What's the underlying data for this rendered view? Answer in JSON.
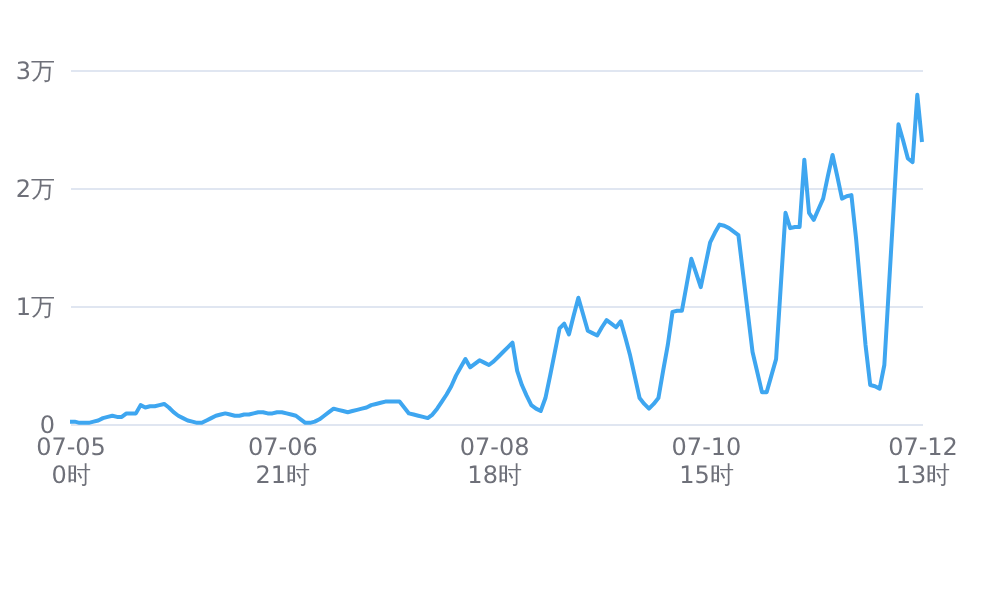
{
  "chart_data": {
    "type": "line",
    "categories": [
      "07-05\n0时",
      null,
      null,
      null,
      null,
      null,
      null,
      null,
      null,
      null,
      null,
      null,
      null,
      null,
      null,
      null,
      null,
      null,
      null,
      null,
      null,
      null,
      null,
      null,
      null,
      null,
      null,
      null,
      null,
      null,
      null,
      null,
      null,
      null,
      null,
      null,
      null,
      null,
      null,
      null,
      null,
      null,
      null,
      null,
      null,
      "07-06\n21时",
      null,
      null,
      null,
      null,
      null,
      null,
      null,
      null,
      null,
      null,
      null,
      null,
      null,
      null,
      null,
      null,
      null,
      null,
      null,
      null,
      null,
      null,
      null,
      null,
      null,
      null,
      null,
      null,
      null,
      null,
      null,
      null,
      null,
      null,
      null,
      null,
      null,
      null,
      null,
      null,
      null,
      null,
      null,
      null,
      "07-08\n18时",
      null,
      null,
      null,
      null,
      null,
      null,
      null,
      null,
      null,
      null,
      null,
      null,
      null,
      null,
      null,
      null,
      null,
      null,
      null,
      null,
      null,
      null,
      null,
      null,
      null,
      null,
      null,
      null,
      null,
      null,
      null,
      null,
      null,
      null,
      null,
      null,
      null,
      null,
      null,
      null,
      null,
      null,
      null,
      null,
      "07-10\n15时",
      null,
      null,
      null,
      null,
      null,
      null,
      null,
      null,
      null,
      null,
      null,
      null,
      null,
      null,
      null,
      null,
      null,
      null,
      null,
      null,
      null,
      null,
      null,
      null,
      null,
      null,
      null,
      null,
      null,
      null,
      null,
      null,
      null,
      null,
      null,
      null,
      null,
      null,
      null,
      null,
      null,
      null,
      null,
      null,
      null,
      "07-12\n13时"
    ],
    "series": [
      {
        "color": "#3ea6f0",
        "values": [
          0.02,
          0.02,
          0.01,
          0.01,
          0.01,
          0.02,
          0.03,
          0.05,
          0.06,
          0.07,
          0.06,
          0.06,
          0.09,
          0.09,
          0.09,
          0.16,
          0.14,
          0.15,
          0.15,
          0.16,
          0.17,
          0.14,
          0.1,
          0.07,
          0.05,
          0.03,
          0.02,
          0.01,
          0.01,
          0.03,
          0.05,
          0.07,
          0.08,
          0.09,
          0.08,
          0.07,
          0.07,
          0.08,
          0.08,
          0.09,
          0.1,
          0.1,
          0.09,
          0.09,
          0.1,
          0.1,
          0.09,
          0.08,
          0.07,
          0.04,
          0.01,
          0.01,
          0.02,
          0.04,
          0.07,
          0.1,
          0.13,
          0.12,
          0.11,
          0.1,
          0.11,
          0.12,
          0.13,
          0.14,
          0.16,
          0.17,
          0.18,
          0.19,
          0.19,
          0.19,
          0.19,
          0.14,
          0.09,
          0.08,
          0.07,
          0.06,
          0.05,
          0.08,
          0.13,
          0.19,
          0.25,
          0.32,
          0.41,
          0.48,
          0.55,
          0.48,
          0.51,
          0.54,
          0.52,
          0.5,
          0.53,
          0.57,
          0.61,
          0.65,
          0.69,
          0.45,
          0.33,
          0.24,
          0.16,
          0.13,
          0.11,
          0.22,
          0.41,
          0.61,
          0.81,
          0.85,
          0.76,
          0.92,
          1.07,
          0.93,
          0.79,
          0.77,
          0.75,
          0.82,
          0.88,
          0.85,
          0.82,
          0.87,
          0.73,
          0.58,
          0.4,
          0.22,
          0.17,
          0.13,
          0.17,
          0.22,
          0.45,
          0.67,
          0.95,
          0.96,
          0.96,
          1.18,
          1.4,
          1.28,
          1.16,
          1.35,
          1.54,
          1.62,
          1.69,
          1.68,
          1.66,
          1.63,
          1.6,
          1.27,
          0.94,
          0.61,
          0.44,
          0.27,
          0.27,
          0.41,
          0.55,
          1.17,
          1.79,
          1.66,
          1.67,
          1.67,
          2.24,
          1.79,
          1.73,
          1.82,
          1.91,
          2.1,
          2.28,
          2.1,
          1.91,
          1.93,
          1.94,
          1.57,
          1.12,
          0.67,
          0.33,
          0.32,
          0.3,
          0.5,
          1.18,
          1.85,
          2.54,
          2.4,
          2.25,
          2.22,
          2.79,
          2.39
        ]
      }
    ],
    "ylim": [
      0,
      3
    ],
    "yticks": [
      0,
      {
        "value": 1,
        "label": "1万"
      },
      {
        "value": 2,
        "label": "2万"
      },
      {
        "value": 3,
        "label": "3万"
      }
    ],
    "grid": "y",
    "marker": "none",
    "line_style": "solid"
  }
}
